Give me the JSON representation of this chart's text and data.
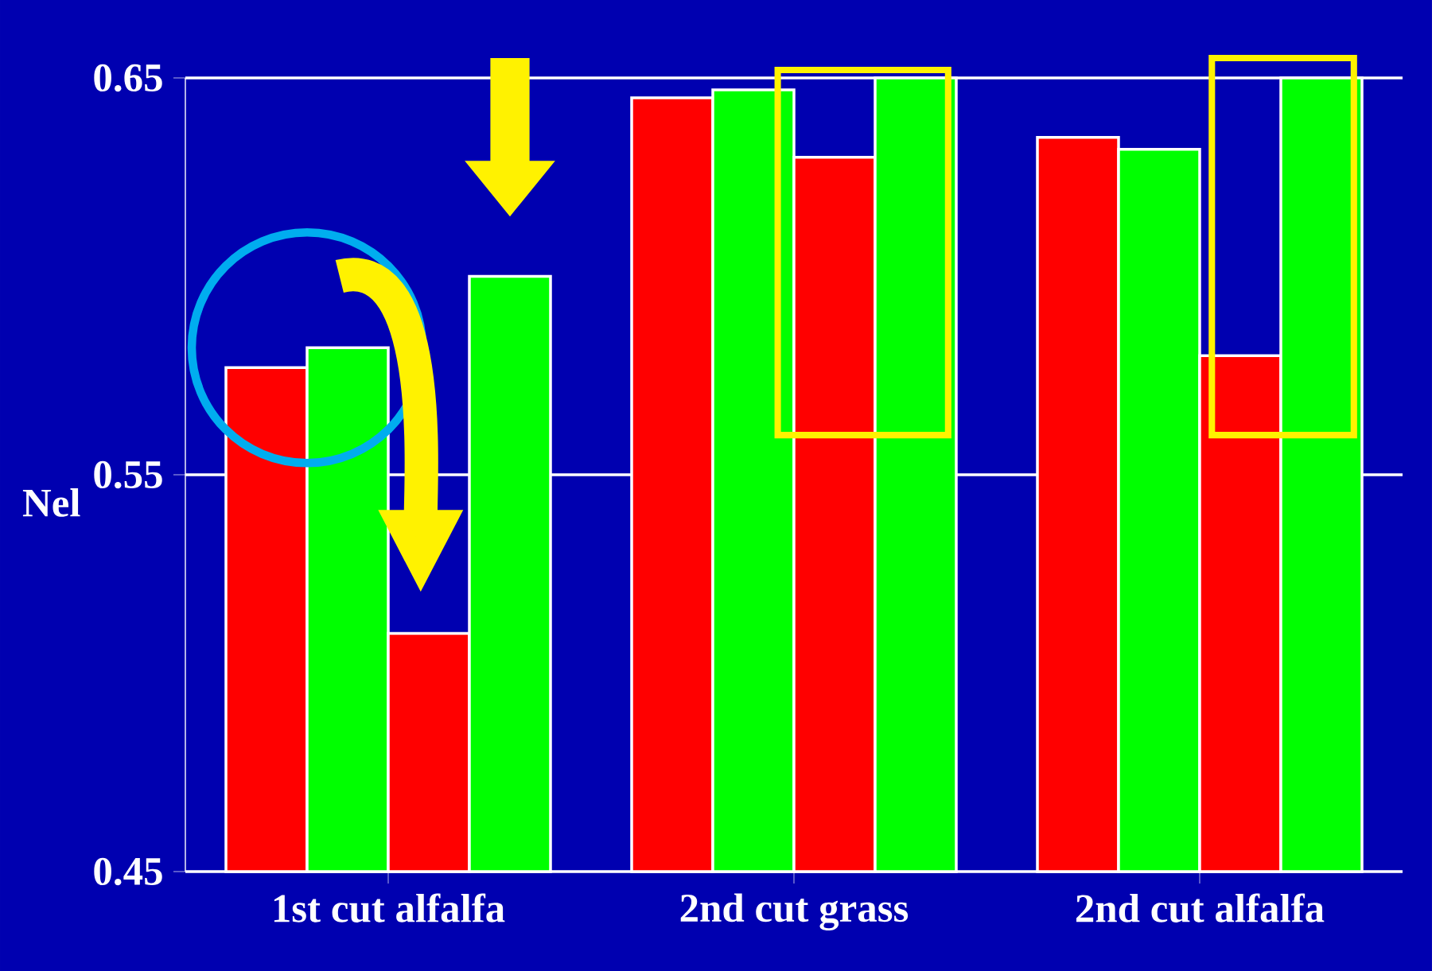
{
  "chart_data": {
    "type": "bar",
    "ylabel": "Nel",
    "categories": [
      "1st cut alfalfa",
      "2nd cut grass",
      "2nd cut alfalfa"
    ],
    "series": [
      {
        "color": "#ff0000",
        "values": [
          0.577,
          0.645,
          0.635
        ]
      },
      {
        "color": "#00ff00",
        "values": [
          0.582,
          0.647,
          0.632
        ]
      },
      {
        "color": "#ff0000",
        "values": [
          0.51,
          0.63,
          0.58
        ]
      },
      {
        "color": "#00ff00",
        "values": [
          0.6,
          0.65,
          0.65
        ]
      }
    ],
    "ylim": [
      0.45,
      0.65
    ],
    "yticks": [
      0.45,
      0.55,
      0.65
    ],
    "grid": "y"
  }
}
